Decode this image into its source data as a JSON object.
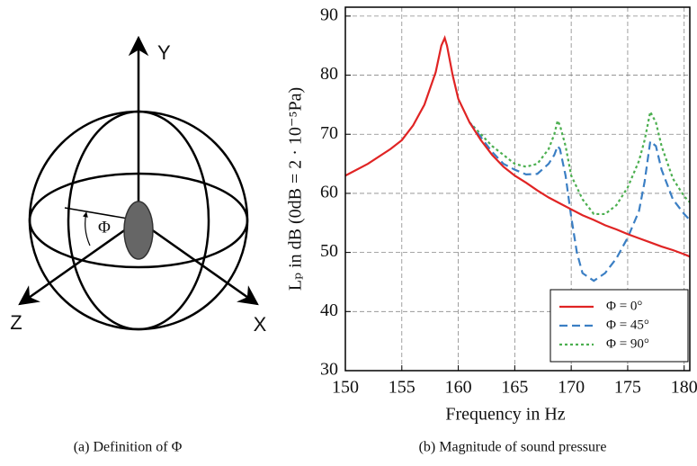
{
  "diagram": {
    "axis_labels": [
      "Y",
      "Z",
      "X"
    ],
    "angle_label": "Φ",
    "caption": "(a) Definition of Φ"
  },
  "chart_data": {
    "type": "line",
    "caption": "(b) Magnitude of sound pressure",
    "xlabel": "Frequency in Hz",
    "ylabel": "Lₚ in dB (0dB = 2 · 10⁻⁵Pa)",
    "xlim": [
      150,
      180.5
    ],
    "ylim": [
      30,
      91.5
    ],
    "xticks": [
      150,
      155,
      160,
      165,
      170,
      175,
      180
    ],
    "yticks": [
      30,
      40,
      50,
      60,
      70,
      80,
      90
    ],
    "grid": true,
    "legend": "lower right",
    "series": [
      {
        "name": "Φ = 0°",
        "color": "#e02424",
        "dash": "solid",
        "x": [
          150,
          152,
          154,
          155,
          156,
          157,
          158,
          158.5,
          158.8,
          159,
          159.5,
          160,
          161,
          162,
          163,
          164,
          165,
          166,
          167,
          168,
          169,
          170,
          171,
          172,
          173,
          174,
          175,
          176,
          177,
          178,
          179,
          180,
          180.5
        ],
        "values": [
          63,
          65,
          67.5,
          69,
          71.5,
          75,
          80.5,
          85,
          86.3,
          85,
          80,
          76,
          72,
          69,
          66.5,
          64.5,
          63,
          61.8,
          60.5,
          59.3,
          58.3,
          57.3,
          56.3,
          55.5,
          54.6,
          53.9,
          53.1,
          52.4,
          51.7,
          51,
          50.4,
          49.7,
          49.3
        ]
      },
      {
        "name": "Φ = 45°",
        "color": "#3b7fc4",
        "dash": "dashed",
        "x": [
          161,
          162,
          163,
          164,
          165,
          166,
          167,
          168,
          168.5,
          168.8,
          169,
          169.5,
          170,
          170.5,
          171,
          172,
          173,
          174,
          175,
          176,
          176.5,
          177,
          177.5,
          178,
          179,
          180,
          180.5
        ],
        "values": [
          72,
          69.5,
          67,
          65,
          64,
          63.2,
          63.3,
          65,
          66.5,
          68,
          67.5,
          63,
          56,
          50,
          46.5,
          45.2,
          46.5,
          49,
          52.5,
          57,
          62,
          68.8,
          68,
          64,
          59,
          56.5,
          55.5
        ]
      },
      {
        "name": "Φ = 90°",
        "color": "#4caf50",
        "dash": "dotted",
        "x": [
          161,
          162,
          163,
          164,
          165,
          166,
          167,
          168,
          168.5,
          168.8,
          169,
          169.5,
          170,
          171,
          172,
          173,
          174,
          175,
          176,
          176.5,
          177,
          177.5,
          178,
          179,
          180,
          180.5
        ],
        "values": [
          72,
          70,
          68,
          66.5,
          65,
          64.5,
          65,
          67.5,
          70,
          72.3,
          71.5,
          68,
          63,
          59,
          56.5,
          56.5,
          58,
          61,
          65.5,
          69,
          73.8,
          72,
          68,
          62.5,
          59.5,
          58.5
        ]
      }
    ]
  }
}
